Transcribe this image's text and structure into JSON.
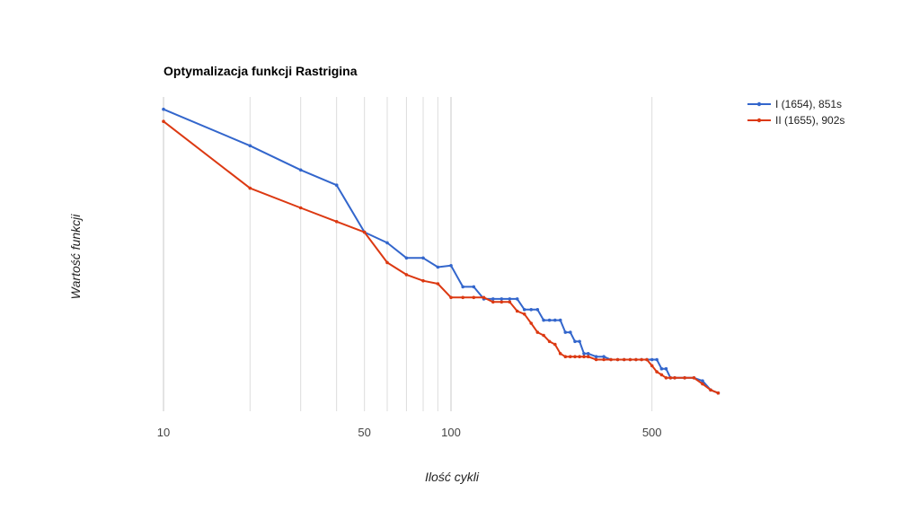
{
  "chart_data": {
    "type": "line",
    "title": "Optymalizacja funkcji Rastrigina",
    "xlabel": "Ilość cykli",
    "ylabel": "Wartość funkcji",
    "x_scale": "log",
    "xlim": [
      10,
      900
    ],
    "x_ticks": [
      10,
      50,
      100,
      500
    ],
    "x_tick_labels": [
      "10",
      "50",
      "100",
      "500"
    ],
    "minor_gridlines": [
      20,
      30,
      40,
      50,
      60,
      70,
      80,
      90,
      100,
      500
    ],
    "major_gridlines": [
      10,
      100
    ],
    "ylim": [
      0,
      1
    ],
    "y_tick_labels": [],
    "legend_position": "top-right",
    "series": [
      {
        "name": "I (1654), 851s",
        "color": "#3366cc",
        "x": [
          10,
          20,
          30,
          40,
          50,
          60,
          70,
          80,
          90,
          100,
          110,
          120,
          130,
          140,
          150,
          160,
          170,
          180,
          190,
          200,
          210,
          220,
          230,
          240,
          250,
          260,
          270,
          280,
          290,
          300,
          320,
          340,
          360,
          380,
          400,
          420,
          440,
          460,
          480,
          500,
          520,
          540,
          560,
          580,
          600,
          650,
          700,
          750,
          800,
          850
        ],
        "y": [
          0.995,
          0.875,
          0.795,
          0.745,
          0.59,
          0.555,
          0.505,
          0.505,
          0.475,
          0.48,
          0.41,
          0.41,
          0.37,
          0.37,
          0.37,
          0.37,
          0.37,
          0.335,
          0.335,
          0.335,
          0.3,
          0.3,
          0.3,
          0.3,
          0.26,
          0.26,
          0.23,
          0.23,
          0.19,
          0.19,
          0.18,
          0.18,
          0.17,
          0.17,
          0.17,
          0.17,
          0.17,
          0.17,
          0.17,
          0.17,
          0.17,
          0.14,
          0.14,
          0.11,
          0.11,
          0.11,
          0.11,
          0.1,
          0.07,
          0.06
        ]
      },
      {
        "name": "II (1655), 902s",
        "color": "#dc3912",
        "x": [
          10,
          20,
          30,
          40,
          50,
          60,
          70,
          80,
          90,
          100,
          110,
          120,
          130,
          140,
          150,
          160,
          170,
          180,
          190,
          200,
          210,
          220,
          230,
          240,
          250,
          260,
          270,
          280,
          290,
          300,
          320,
          340,
          360,
          380,
          400,
          420,
          440,
          460,
          480,
          500,
          520,
          540,
          560,
          580,
          600,
          650,
          700,
          750,
          800,
          850
        ],
        "y": [
          0.955,
          0.735,
          0.67,
          0.625,
          0.59,
          0.49,
          0.45,
          0.43,
          0.42,
          0.375,
          0.375,
          0.375,
          0.375,
          0.36,
          0.36,
          0.36,
          0.33,
          0.32,
          0.29,
          0.26,
          0.25,
          0.23,
          0.22,
          0.19,
          0.18,
          0.18,
          0.18,
          0.18,
          0.18,
          0.18,
          0.17,
          0.17,
          0.17,
          0.17,
          0.17,
          0.17,
          0.17,
          0.17,
          0.17,
          0.15,
          0.13,
          0.12,
          0.11,
          0.11,
          0.11,
          0.11,
          0.11,
          0.09,
          0.07,
          0.06
        ]
      }
    ]
  }
}
